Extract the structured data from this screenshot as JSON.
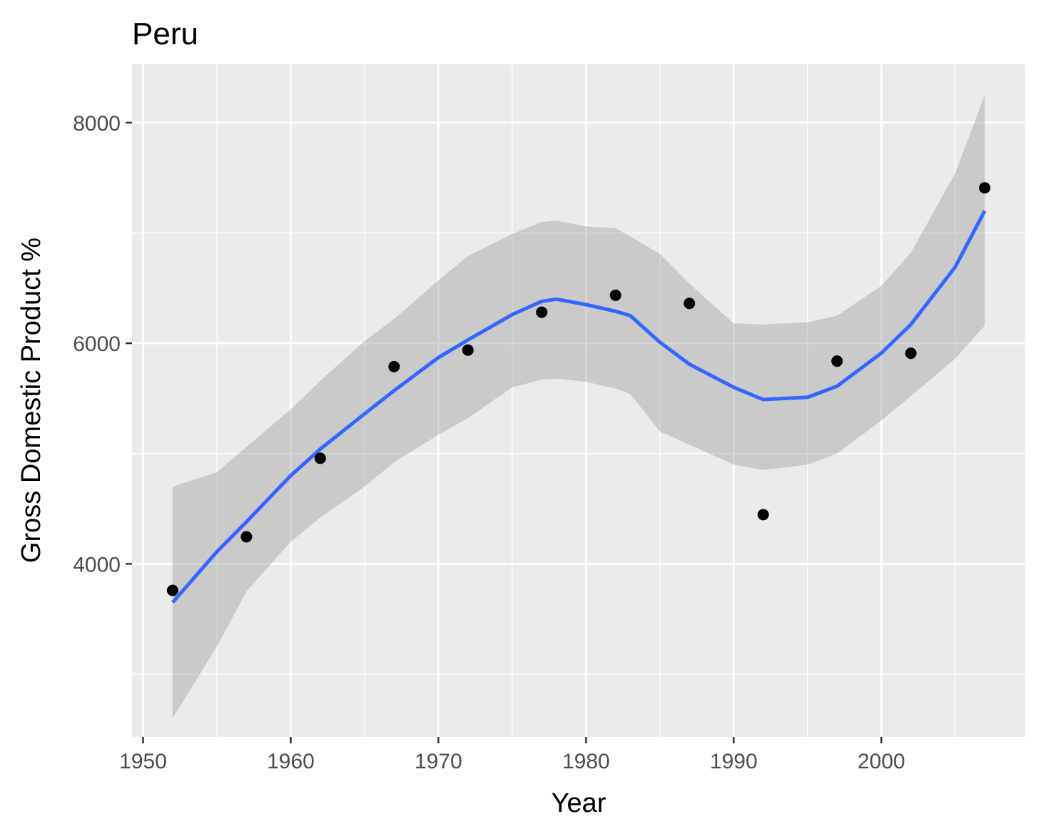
{
  "chart_data": {
    "type": "scatter",
    "title": "Peru",
    "xlabel": "Year",
    "ylabel": "Gross Domestic Product %",
    "xlim": [
      1949.25,
      2009.75
    ],
    "ylim": [
      2430,
      8530
    ],
    "x_ticks": [
      1950,
      1960,
      1970,
      1980,
      1990,
      2000
    ],
    "y_ticks": [
      4000,
      6000,
      8000
    ],
    "grid": true,
    "colors": {
      "panel": "#EBEBEB",
      "grid": "#FFFFFF",
      "points": "#000000",
      "smooth_line": "#3366FF",
      "ribbon": "#999999"
    },
    "points": [
      {
        "x": 1952,
        "y": 3759
      },
      {
        "x": 1957,
        "y": 4245
      },
      {
        "x": 1962,
        "y": 4957
      },
      {
        "x": 1967,
        "y": 5788
      },
      {
        "x": 1972,
        "y": 5938
      },
      {
        "x": 1977,
        "y": 6281
      },
      {
        "x": 1982,
        "y": 6435
      },
      {
        "x": 1987,
        "y": 6361
      },
      {
        "x": 1992,
        "y": 4446
      },
      {
        "x": 1997,
        "y": 5838
      },
      {
        "x": 2002,
        "y": 5909
      },
      {
        "x": 2007,
        "y": 7409
      }
    ],
    "smooth": {
      "method": "loess",
      "x": [
        1952,
        1955,
        1957,
        1960,
        1962,
        1965,
        1967,
        1970,
        1972,
        1975,
        1977,
        1978,
        1980,
        1982,
        1983,
        1985,
        1987,
        1990,
        1992,
        1995,
        1997,
        2000,
        2002,
        2005,
        2007
      ],
      "y": [
        3650,
        4110,
        4380,
        4800,
        5040,
        5360,
        5570,
        5870,
        6030,
        6260,
        6380,
        6400,
        6350,
        6290,
        6250,
        6010,
        5810,
        5600,
        5490,
        5510,
        5610,
        5910,
        6170,
        6690,
        7200
      ],
      "lower": [
        2600,
        3250,
        3750,
        4200,
        4420,
        4700,
        4920,
        5170,
        5320,
        5600,
        5670,
        5680,
        5650,
        5590,
        5540,
        5200,
        5080,
        4900,
        4850,
        4900,
        5000,
        5300,
        5520,
        5860,
        6160
      ],
      "upper": [
        4700,
        4830,
        5060,
        5400,
        5660,
        6020,
        6220,
        6570,
        6790,
        6990,
        7100,
        7110,
        7060,
        7040,
        6970,
        6810,
        6540,
        6180,
        6170,
        6190,
        6250,
        6520,
        6820,
        7540,
        8250
      ]
    }
  }
}
